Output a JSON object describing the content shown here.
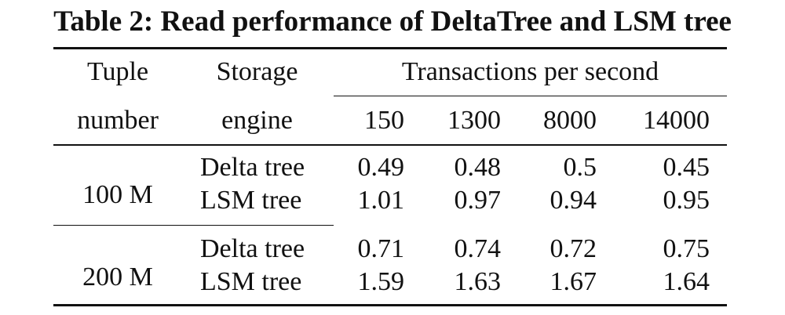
{
  "caption": "Table 2: Read performance of DeltaTree and LSM tree",
  "header": {
    "tuple_line1": "Tuple",
    "tuple_line2": "number",
    "storage_line1": "Storage",
    "storage_line2": "engine",
    "tps_label": "Transactions per second",
    "tps_columns": [
      "150",
      "1300",
      "8000",
      "14000"
    ]
  },
  "groups": [
    {
      "tuple_number": "100 M",
      "rows": [
        {
          "engine": "Delta tree",
          "values": [
            "0.49",
            "0.48",
            "0.5",
            "0.45"
          ]
        },
        {
          "engine": "LSM tree",
          "values": [
            "1.01",
            "0.97",
            "0.94",
            "0.95"
          ]
        }
      ]
    },
    {
      "tuple_number": "200 M",
      "rows": [
        {
          "engine": "Delta tree",
          "values": [
            "0.71",
            "0.74",
            "0.72",
            "0.75"
          ]
        },
        {
          "engine": "LSM tree",
          "values": [
            "1.59",
            "1.63",
            "1.67",
            "1.64"
          ]
        }
      ]
    }
  ]
}
